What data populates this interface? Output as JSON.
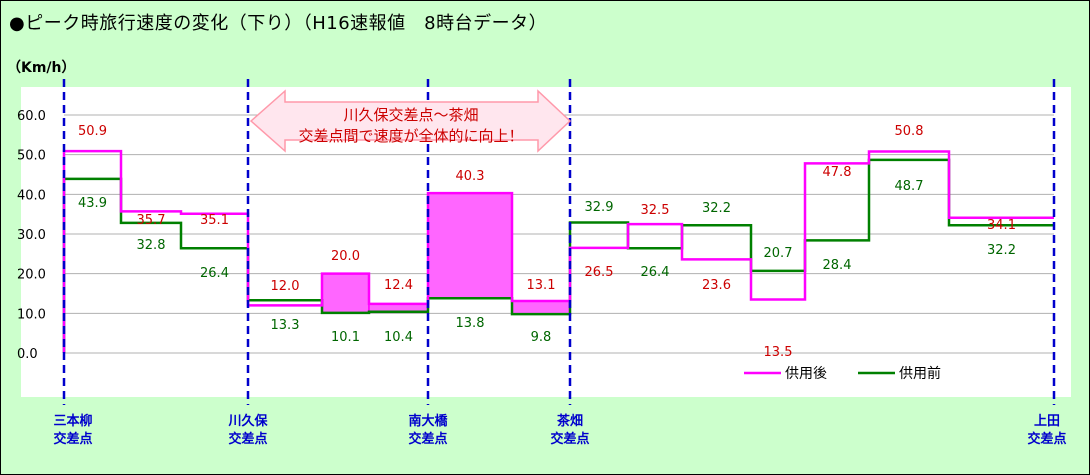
{
  "title": "●ピーク時旅行速度の変化（下り）（H16速報値　8時台データ）",
  "chart_data": {
    "type": "line",
    "step": true,
    "ylabel": "（Km/h）",
    "ylim": [
      0,
      60
    ],
    "yticks": [
      "60.0",
      "50.0",
      "40.0",
      "30.0",
      "20.0",
      "10.0",
      "0.0"
    ],
    "grid": true,
    "legend_position": "bottom-right",
    "annotation": [
      "川久保交差点～茶畑",
      "交差点間で速度が全体的に向上！"
    ],
    "series": [
      {
        "name": "供用後",
        "color": "#ff00ff",
        "values": [
          50.9,
          35.7,
          35.1,
          12.0,
          20.0,
          12.4,
          40.3,
          13.1,
          26.5,
          32.5,
          23.6,
          13.5,
          47.8,
          50.8,
          34.1
        ]
      },
      {
        "name": "供用前",
        "color": "#008000",
        "values": [
          43.9,
          32.8,
          26.4,
          13.3,
          10.1,
          10.4,
          13.8,
          9.8,
          32.9,
          26.4,
          32.2,
          20.7,
          28.4,
          48.7,
          32.2
        ]
      }
    ],
    "labels_after": [
      "50.9",
      "35.7",
      "35.1",
      "12.0",
      "20.0",
      "12.4",
      "40.3",
      "13.1",
      "26.5",
      "32.5",
      "23.6",
      "13.5",
      "47.8",
      "50.8",
      "34.1"
    ],
    "labels_before": [
      "43.9",
      "32.8",
      "26.4",
      "13.3",
      "10.1",
      "10.4",
      "13.8",
      "9.8",
      "32.9",
      "26.4",
      "32.2",
      "20.7",
      "28.4",
      "48.7",
      "32.2"
    ],
    "intersections": [
      {
        "line1": "三本柳",
        "line2": "交差点"
      },
      {
        "line1": "川久保",
        "line2": "交差点"
      },
      {
        "line1": "南大橋",
        "line2": "交差点"
      },
      {
        "line1": "茶畑",
        "line2": "交差点"
      },
      {
        "line1": "上田",
        "line2": "交差点"
      }
    ],
    "colors": {
      "after": "#ff00ff",
      "before": "#008000",
      "label_after": "#cc0000",
      "label_before": "#006600",
      "fill": "#ff66ff",
      "divider": "#0000cc"
    }
  }
}
